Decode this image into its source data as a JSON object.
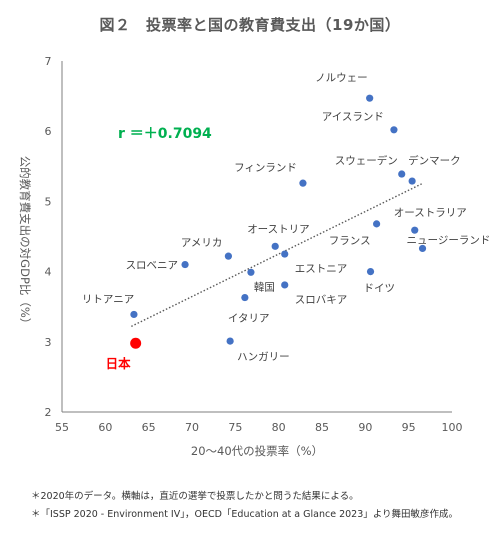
{
  "chart_data": {
    "type": "scatter",
    "title": "図２　投票率と国の教育費支出（19か国）",
    "xlabel": "20〜40代の投票率（%）",
    "ylabel": "公的教育費支出の対GDP比（%）",
    "xlim": [
      55,
      100
    ],
    "ylim": [
      2,
      7
    ],
    "xticks": [
      "55",
      "60",
      "65",
      "70",
      "75",
      "80",
      "85",
      "90",
      "95",
      "100"
    ],
    "yticks": [
      "2",
      "3",
      "4",
      "5",
      "6",
      "7"
    ],
    "grid": false,
    "annotation": "r ＝＋0.7094",
    "trendline": {
      "style": "dotted",
      "x": [
        63,
        96.5
      ],
      "y": [
        3.22,
        5.25
      ]
    },
    "points": [
      {
        "label": "ノルウェー",
        "x": 90.5,
        "y": 6.47
      },
      {
        "label": "アイスランド",
        "x": 93.3,
        "y": 6.02
      },
      {
        "label": "フィンランド",
        "x": 82.8,
        "y": 5.26
      },
      {
        "label": "スウェーデン",
        "x": 94.2,
        "y": 5.39
      },
      {
        "label": "デンマーク",
        "x": 95.4,
        "y": 5.29
      },
      {
        "label": "オーストラリア",
        "x": 95.7,
        "y": 4.59
      },
      {
        "label": "フランス",
        "x": 91.3,
        "y": 4.68
      },
      {
        "label": "ニュージーランド",
        "x": 96.6,
        "y": 4.33
      },
      {
        "label": "ドイツ",
        "x": 90.6,
        "y": 4.0
      },
      {
        "label": "オーストリア",
        "x": 79.6,
        "y": 4.36
      },
      {
        "label": "エストニア",
        "x": 80.7,
        "y": 4.25
      },
      {
        "label": "スロバキア",
        "x": 80.7,
        "y": 3.81
      },
      {
        "label": "アメリカ",
        "x": 74.2,
        "y": 4.22
      },
      {
        "label": "スロベニア",
        "x": 69.2,
        "y": 4.1
      },
      {
        "label": "韓国",
        "x": 76.8,
        "y": 3.99
      },
      {
        "label": "イタリア",
        "x": 76.1,
        "y": 3.63
      },
      {
        "label": "リトアニア",
        "x": 63.3,
        "y": 3.39
      },
      {
        "label": "ハンガリー",
        "x": 74.4,
        "y": 3.01
      },
      {
        "label": "日本",
        "x": 63.5,
        "y": 2.98,
        "highlight": true
      }
    ],
    "colors": {
      "point": "#4472c4",
      "highlight": "#ff0000",
      "annotation": "#00b050",
      "trend": "#595959"
    }
  },
  "notes": [
    "＊2020年のデータ。横軸は，直近の選挙で投票したかと問うた結果による。",
    "＊「ISSP 2020 - Environment IV」，OECD「Education at a Glance 2023」より舞田敏彦作成。"
  ]
}
